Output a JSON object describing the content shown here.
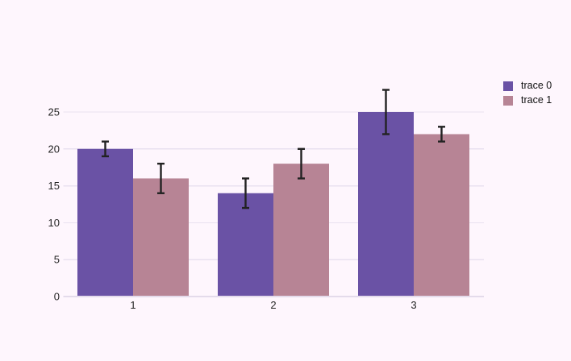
{
  "chart_data": {
    "type": "bar",
    "mode": "grouped",
    "categories": [
      "1",
      "2",
      "3"
    ],
    "series": [
      {
        "name": "trace 0",
        "color": "#6a52a5",
        "values": [
          20,
          14,
          25
        ],
        "error_y": [
          1,
          2,
          3
        ]
      },
      {
        "name": "trace 1",
        "color": "#b78495",
        "values": [
          16,
          18,
          22
        ],
        "error_y": [
          2,
          2,
          1
        ]
      }
    ],
    "title": "",
    "xlabel": "",
    "ylabel": "",
    "ylim": [
      0,
      28.5
    ],
    "yticks": [
      0,
      5,
      10,
      15,
      20,
      25
    ],
    "grid": true,
    "legend_position": "right",
    "error_bar_color": "#222222"
  },
  "colors": {
    "page_background": "#fef6fd",
    "plot_background": "#fef6fd",
    "gridline": "#e9e1f0",
    "zero_line": "#e4dbeb",
    "tick_label": "#242424",
    "legend_text": "#111111"
  }
}
